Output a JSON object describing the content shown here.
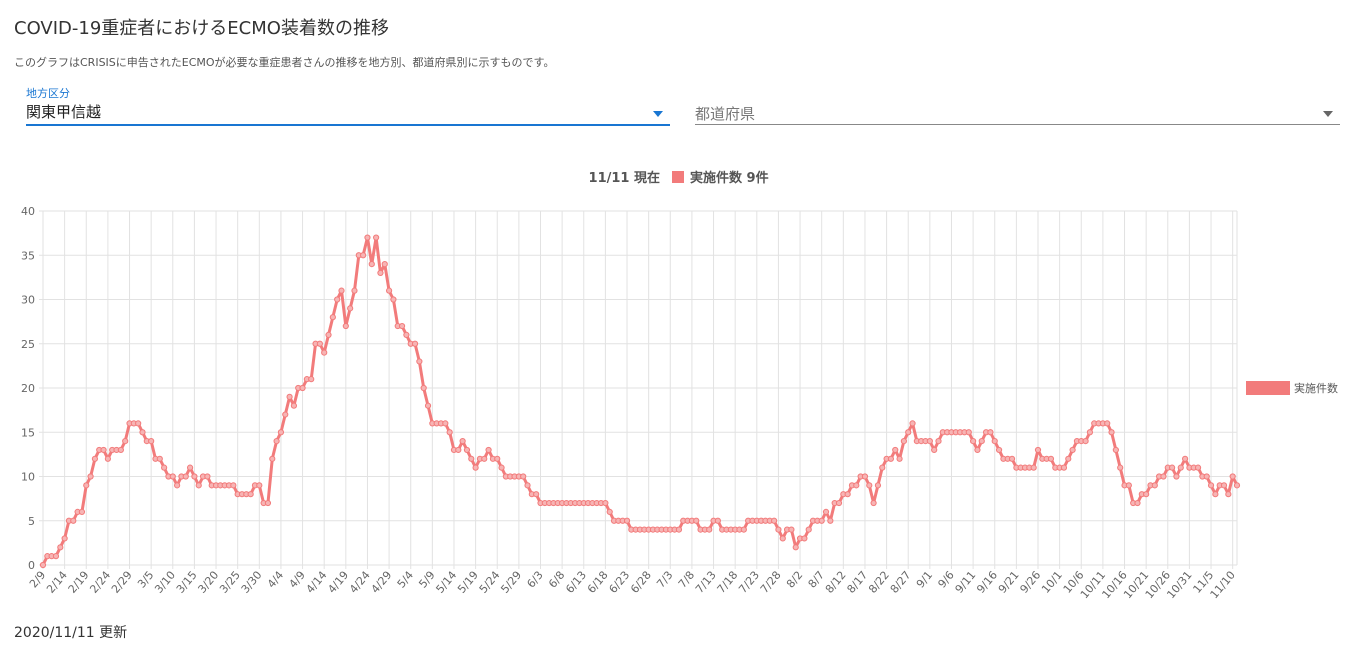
{
  "header": {
    "title": "COVID-19重症者におけるECMO装着数の推移",
    "description": "このグラフはCRISISに申告されたECMOが必要な重症患者さんの推移を地方別、都道府県別に示すものです。"
  },
  "filters": {
    "region_label": "地方区分",
    "region_value": "関東甲信越",
    "prefecture_placeholder": "都道府県"
  },
  "footer": {
    "updated": "2020/11/11 更新"
  },
  "chart_data": {
    "type": "line",
    "current_label": "11/11 現在",
    "current_legend": "実施件数 9件",
    "categories": [
      "2/9",
      null,
      null,
      null,
      null,
      "2/14",
      null,
      null,
      null,
      null,
      "2/19",
      null,
      null,
      null,
      null,
      "2/24",
      null,
      null,
      null,
      null,
      "2/29",
      null,
      null,
      null,
      null,
      "3/5",
      null,
      null,
      null,
      null,
      "3/10",
      null,
      null,
      null,
      null,
      "3/15",
      null,
      null,
      null,
      null,
      "3/20",
      null,
      null,
      null,
      null,
      "3/25",
      null,
      null,
      null,
      null,
      "3/30",
      null,
      null,
      null,
      null,
      "4/4",
      null,
      null,
      null,
      null,
      "4/9",
      null,
      null,
      null,
      null,
      "4/14",
      null,
      null,
      null,
      null,
      "4/19",
      null,
      null,
      null,
      null,
      "4/24",
      null,
      null,
      null,
      null,
      "4/29",
      null,
      null,
      null,
      null,
      "5/4",
      null,
      null,
      null,
      null,
      "5/9",
      null,
      null,
      null,
      null,
      "5/14",
      null,
      null,
      null,
      null,
      "5/19",
      null,
      null,
      null,
      null,
      "5/24",
      null,
      null,
      null,
      null,
      "5/29",
      null,
      null,
      null,
      null,
      "6/3",
      null,
      null,
      null,
      null,
      "6/8",
      null,
      null,
      null,
      null,
      "6/13",
      null,
      null,
      null,
      null,
      "6/18",
      null,
      null,
      null,
      null,
      "6/23",
      null,
      null,
      null,
      null,
      "6/28",
      null,
      null,
      null,
      null,
      "7/3",
      null,
      null,
      null,
      null,
      "7/8",
      null,
      null,
      null,
      null,
      "7/13",
      null,
      null,
      null,
      null,
      "7/18",
      null,
      null,
      null,
      null,
      "7/23",
      null,
      null,
      null,
      null,
      "7/28",
      null,
      null,
      null,
      null,
      "8/2",
      null,
      null,
      null,
      null,
      "8/7",
      null,
      null,
      null,
      null,
      "8/12",
      null,
      null,
      null,
      null,
      "8/17",
      null,
      null,
      null,
      null,
      "8/22",
      null,
      null,
      null,
      null,
      "8/27",
      null,
      null,
      null,
      null,
      "9/1",
      null,
      null,
      null,
      null,
      "9/6",
      null,
      null,
      null,
      null,
      "9/11",
      null,
      null,
      null,
      null,
      "9/16",
      null,
      null,
      null,
      null,
      "9/21",
      null,
      null,
      null,
      null,
      "9/26",
      null,
      null,
      null,
      null,
      "10/1",
      null,
      null,
      null,
      null,
      "10/6",
      null,
      null,
      null,
      null,
      "10/11",
      null,
      null,
      null,
      null,
      "10/16",
      null,
      null,
      null,
      null,
      "10/21",
      null,
      null,
      null,
      null,
      "10/26",
      null,
      null,
      null,
      null,
      "10/31",
      null,
      null,
      null,
      null,
      "11/5",
      null,
      null,
      null,
      null,
      "11/10",
      null
    ],
    "series": [
      {
        "name": "実施件数",
        "color": "#f27b7b",
        "values": [
          0,
          1,
          1,
          1,
          2,
          3,
          5,
          5,
          6,
          6,
          9,
          10,
          12,
          13,
          13,
          12,
          13,
          13,
          13,
          14,
          16,
          16,
          16,
          15,
          14,
          14,
          12,
          12,
          11,
          10,
          10,
          9,
          10,
          10,
          11,
          10,
          9,
          10,
          10,
          9,
          9,
          9,
          9,
          9,
          9,
          8,
          8,
          8,
          8,
          9,
          9,
          7,
          7,
          12,
          14,
          15,
          17,
          19,
          18,
          20,
          20,
          21,
          21,
          25,
          25,
          24,
          26,
          28,
          30,
          31,
          27,
          29,
          31,
          35,
          35,
          37,
          34,
          37,
          33,
          34,
          31,
          30,
          27,
          27,
          26,
          25,
          25,
          23,
          20,
          18,
          16,
          16,
          16,
          16,
          15,
          13,
          13,
          14,
          13,
          12,
          11,
          12,
          12,
          13,
          12,
          12,
          11,
          10,
          10,
          10,
          10,
          10,
          9,
          8,
          8,
          7,
          7,
          7,
          7,
          7,
          7,
          7,
          7,
          7,
          7,
          7,
          7,
          7,
          7,
          7,
          7,
          6,
          5,
          5,
          5,
          5,
          4,
          4,
          4,
          4,
          4,
          4,
          4,
          4,
          4,
          4,
          4,
          4,
          5,
          5,
          5,
          5,
          4,
          4,
          4,
          5,
          5,
          4,
          4,
          4,
          4,
          4,
          4,
          5,
          5,
          5,
          5,
          5,
          5,
          5,
          4,
          3,
          4,
          4,
          2,
          3,
          3,
          4,
          5,
          5,
          5,
          6,
          5,
          7,
          7,
          8,
          8,
          9,
          9,
          10,
          10,
          9,
          7,
          9,
          11,
          12,
          12,
          13,
          12,
          14,
          15,
          16,
          14,
          14,
          14,
          14,
          13,
          14,
          15,
          15,
          15,
          15,
          15,
          15,
          15,
          14,
          13,
          14,
          15,
          15,
          14,
          13,
          12,
          12,
          12,
          11,
          11,
          11,
          11,
          11,
          13,
          12,
          12,
          12,
          11,
          11,
          11,
          12,
          13,
          14,
          14,
          14,
          15,
          16,
          16,
          16,
          16,
          15,
          13,
          11,
          9,
          9,
          7,
          7,
          8,
          8,
          9,
          9,
          10,
          10,
          11,
          11,
          10,
          11,
          12,
          11,
          11,
          11,
          10,
          10,
          9,
          8,
          9,
          9,
          8,
          10,
          9
        ]
      }
    ],
    "ylim": [
      0,
      40
    ],
    "yticks": [
      0,
      5,
      10,
      15,
      20,
      25,
      30,
      35,
      40
    ],
    "grid": true,
    "legend": "right"
  }
}
